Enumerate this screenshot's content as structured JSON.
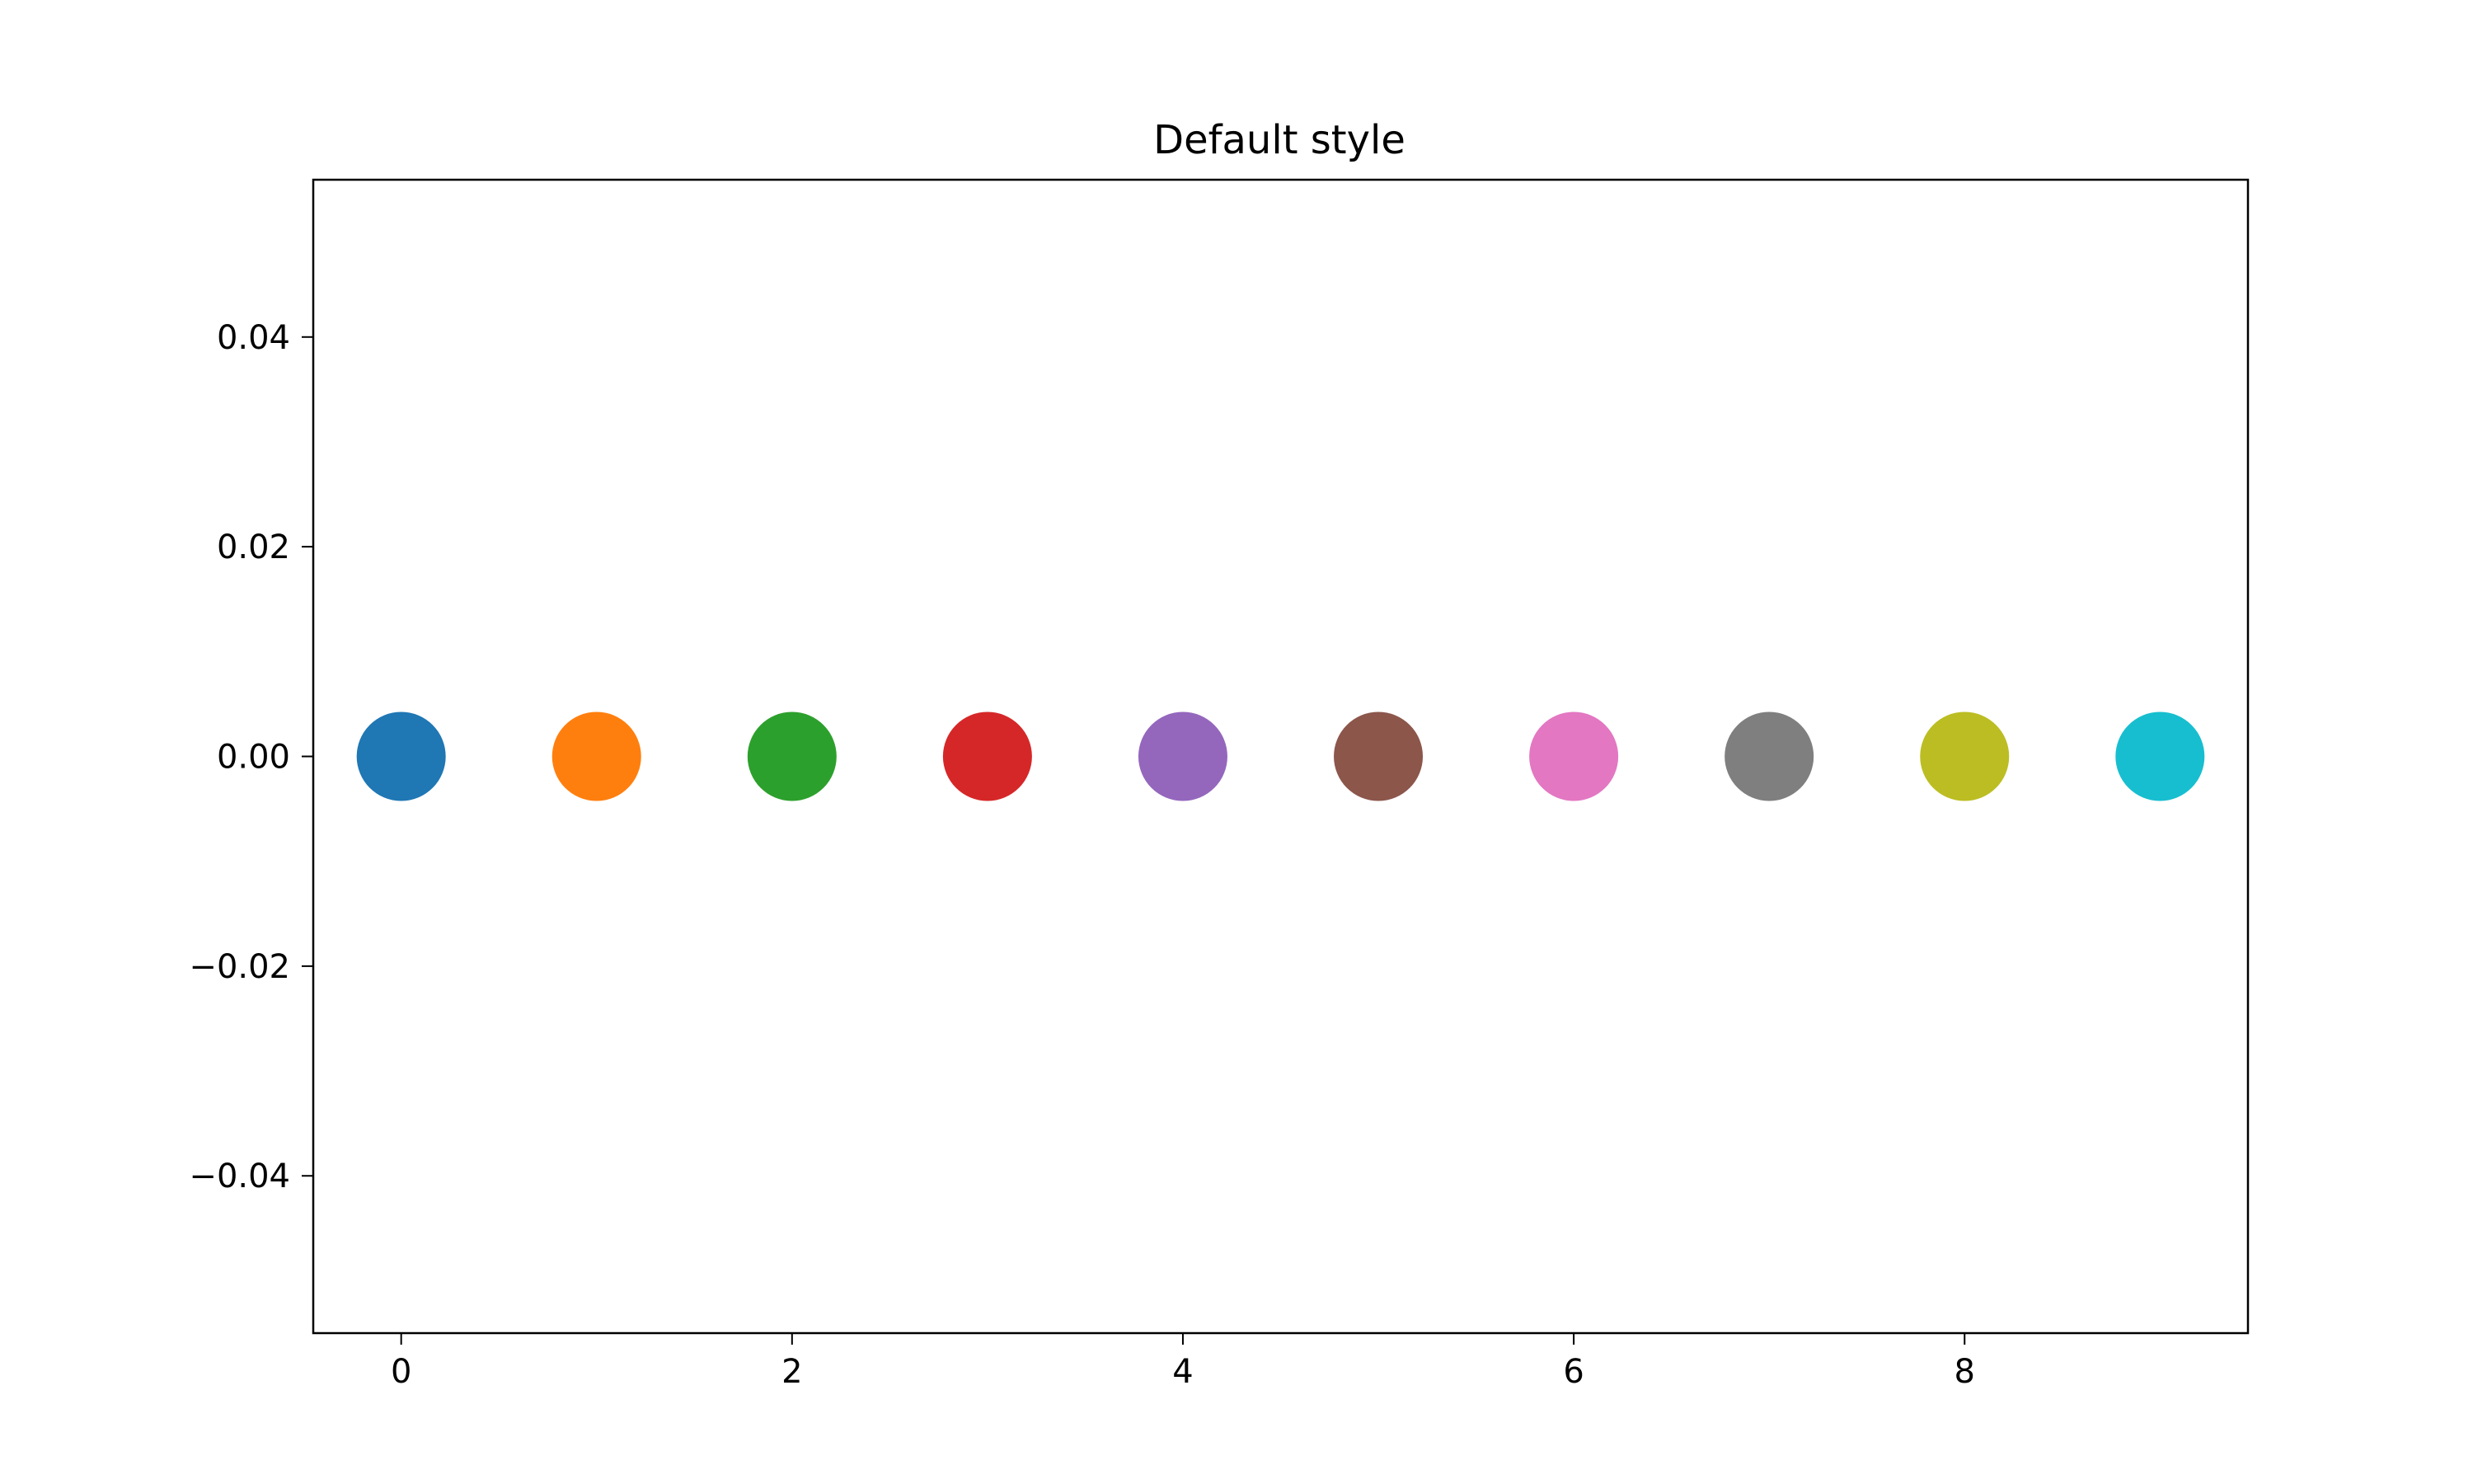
{
  "chart_data": {
    "type": "scatter",
    "title": "Default style",
    "xlabel": "",
    "ylabel": "",
    "xlim": [
      -0.45,
      9.45
    ],
    "ylim": [
      -0.055,
      0.055
    ],
    "grid": false,
    "x": [
      0,
      1,
      2,
      3,
      4,
      5,
      6,
      7,
      8,
      9
    ],
    "y": [
      0,
      0,
      0,
      0,
      0,
      0,
      0,
      0,
      0,
      0
    ],
    "point_colors": [
      "#1f77b4",
      "#ff7f0e",
      "#2ca02c",
      "#d62728",
      "#9467bd",
      "#8c564b",
      "#e377c2",
      "#7f7f7f",
      "#bcbd22",
      "#17becf"
    ],
    "xticks": [
      0,
      2,
      4,
      6,
      8
    ],
    "xtick_labels": [
      "0",
      "2",
      "4",
      "6",
      "8"
    ],
    "yticks": [
      0.04,
      0.02,
      0.0,
      -0.02,
      -0.04
    ],
    "ytick_labels": [
      "0.04",
      "0.02",
      "0.00",
      "−0.02",
      "−0.04"
    ]
  }
}
